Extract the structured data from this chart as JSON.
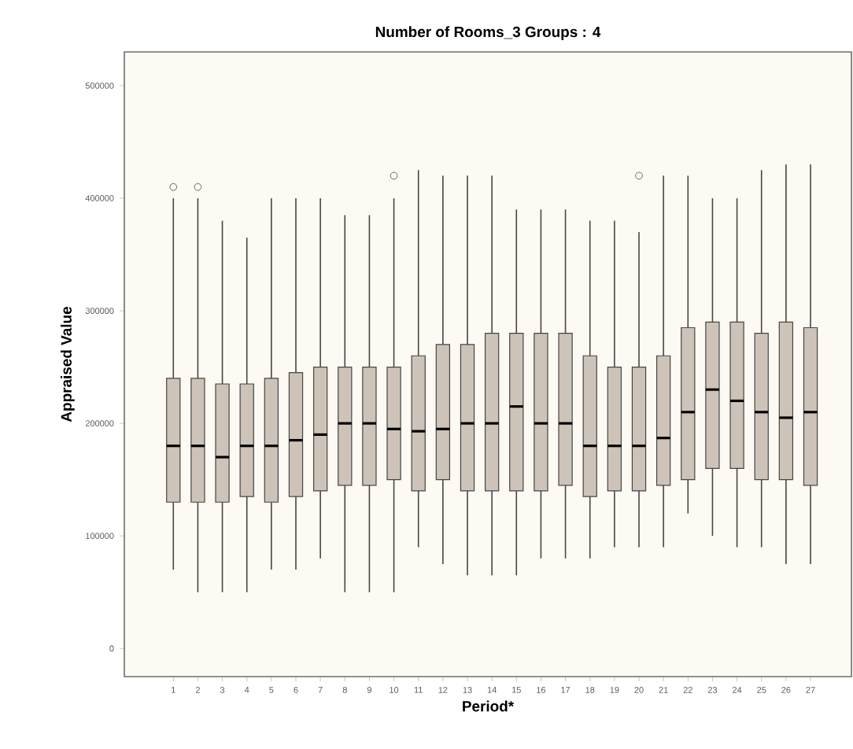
{
  "chart_data": {
    "type": "box",
    "title": "Number of Rooms_3 Groups : 4",
    "xlabel": "Period*",
    "ylabel": "Appraised Value",
    "categories": [
      "1",
      "2",
      "3",
      "4",
      "5",
      "6",
      "7",
      "8",
      "9",
      "10",
      "11",
      "12",
      "13",
      "14",
      "15",
      "16",
      "17",
      "18",
      "19",
      "20",
      "21",
      "22",
      "23",
      "24",
      "25",
      "26",
      "27"
    ],
    "color": "#cdc3b8",
    "boxes": [
      {
        "low": 70000,
        "q1": 130000,
        "median": 180000,
        "q3": 240000,
        "high": 400000,
        "outliers": [
          410000
        ]
      },
      {
        "low": 50000,
        "q1": 130000,
        "median": 180000,
        "q3": 240000,
        "high": 400000,
        "outliers": [
          410000
        ]
      },
      {
        "low": 50000,
        "q1": 130000,
        "median": 170000,
        "q3": 235000,
        "high": 380000
      },
      {
        "low": 50000,
        "q1": 135000,
        "median": 180000,
        "q3": 235000,
        "high": 365000
      },
      {
        "low": 70000,
        "q1": 130000,
        "median": 180000,
        "q3": 240000,
        "high": 400000
      },
      {
        "low": 70000,
        "q1": 135000,
        "median": 185000,
        "q3": 245000,
        "high": 400000
      },
      {
        "low": 80000,
        "q1": 140000,
        "median": 190000,
        "q3": 250000,
        "high": 400000
      },
      {
        "low": 50000,
        "q1": 145000,
        "median": 200000,
        "q3": 250000,
        "high": 385000
      },
      {
        "low": 50000,
        "q1": 145000,
        "median": 200000,
        "q3": 250000,
        "high": 385000
      },
      {
        "low": 50000,
        "q1": 150000,
        "median": 195000,
        "q3": 250000,
        "high": 400000,
        "outliers": [
          420000
        ]
      },
      {
        "low": 90000,
        "q1": 140000,
        "median": 193000,
        "q3": 260000,
        "high": 425000
      },
      {
        "low": 75000,
        "q1": 150000,
        "median": 195000,
        "q3": 270000,
        "high": 420000
      },
      {
        "low": 65000,
        "q1": 140000,
        "median": 200000,
        "q3": 270000,
        "high": 420000
      },
      {
        "low": 65000,
        "q1": 140000,
        "median": 200000,
        "q3": 280000,
        "high": 420000
      },
      {
        "low": 65000,
        "q1": 140000,
        "median": 215000,
        "q3": 280000,
        "high": 390000
      },
      {
        "low": 80000,
        "q1": 140000,
        "median": 200000,
        "q3": 280000,
        "high": 390000
      },
      {
        "low": 80000,
        "q1": 145000,
        "median": 200000,
        "q3": 280000,
        "high": 390000
      },
      {
        "low": 80000,
        "q1": 135000,
        "median": 180000,
        "q3": 260000,
        "high": 380000
      },
      {
        "low": 90000,
        "q1": 140000,
        "median": 180000,
        "q3": 250000,
        "high": 380000
      },
      {
        "low": 90000,
        "q1": 140000,
        "median": 180000,
        "q3": 250000,
        "high": 370000,
        "outliers": [
          420000
        ]
      },
      {
        "low": 90000,
        "q1": 145000,
        "median": 187000,
        "q3": 260000,
        "high": 420000
      },
      {
        "low": 120000,
        "q1": 150000,
        "median": 210000,
        "q3": 285000,
        "high": 420000
      },
      {
        "low": 100000,
        "q1": 160000,
        "median": 230000,
        "q3": 290000,
        "high": 400000
      },
      {
        "low": 90000,
        "q1": 160000,
        "median": 220000,
        "q3": 290000,
        "high": 400000
      },
      {
        "low": 90000,
        "q1": 150000,
        "median": 210000,
        "q3": 280000,
        "high": 425000
      },
      {
        "low": 75000,
        "q1": 150000,
        "median": 205000,
        "q3": 290000,
        "high": 430000
      },
      {
        "low": 75000,
        "q1": 145000,
        "median": 210000,
        "q3": 285000,
        "high": 430000
      }
    ],
    "ylim": [
      -25000,
      530000
    ],
    "yticks": [
      0,
      100000,
      200000,
      300000,
      400000,
      500000
    ]
  }
}
